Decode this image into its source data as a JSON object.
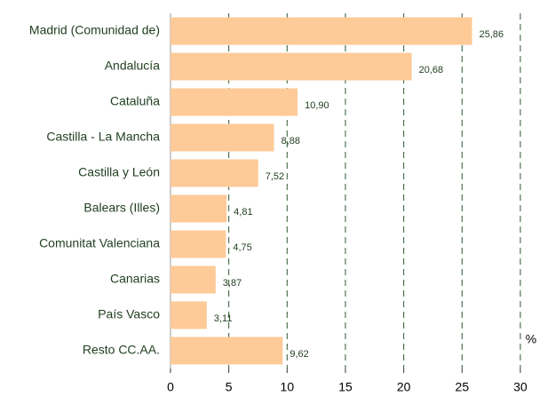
{
  "chart_data": {
    "type": "bar",
    "orientation": "horizontal",
    "categories": [
      "Madrid (Comunidad de)",
      "Andalucía",
      "Cataluña",
      "Castilla - La Mancha",
      "Castilla y León",
      "Balears (Illes)",
      "Comunitat Valenciana",
      "Canarias",
      "País Vasco",
      "Resto CC.AA."
    ],
    "values": [
      25.86,
      20.68,
      10.9,
      8.88,
      7.52,
      4.81,
      4.75,
      3.87,
      3.11,
      9.62
    ],
    "value_labels": [
      "25,86",
      "20,68",
      "10,90",
      "8,88",
      "7,52",
      "4,81",
      "4,75",
      "3,87",
      "3,11",
      "9,62"
    ],
    "color": "#fdca98",
    "xlabel": "%",
    "xlim": [
      0,
      30
    ],
    "xticks": [
      0,
      5,
      10,
      15,
      20,
      25,
      30
    ],
    "grid": true
  }
}
